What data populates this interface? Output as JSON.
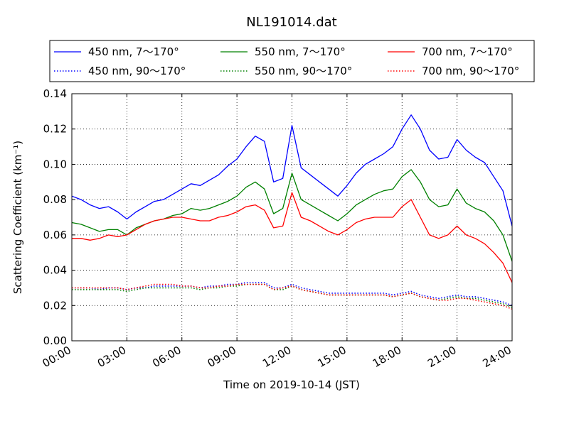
{
  "chart_data": {
    "type": "line",
    "title": "NL191014.dat",
    "xlabel": "Time on 2019-10-14 (JST)",
    "ylabel": "Scattering Coefficient (km⁻¹)",
    "x_unit": "hours",
    "xlim": [
      0,
      24
    ],
    "ylim": [
      0,
      0.14
    ],
    "xticks": [
      {
        "value": 0,
        "label": "00:00"
      },
      {
        "value": 3,
        "label": "03:00"
      },
      {
        "value": 6,
        "label": "06:00"
      },
      {
        "value": 9,
        "label": "09:00"
      },
      {
        "value": 12,
        "label": "12:00"
      },
      {
        "value": 15,
        "label": "15:00"
      },
      {
        "value": 18,
        "label": "18:00"
      },
      {
        "value": 21,
        "label": "21:00"
      },
      {
        "value": 24,
        "label": "24:00"
      }
    ],
    "yticks": [
      {
        "value": 0,
        "label": "0.00"
      },
      {
        "value": 0.02,
        "label": "0.02"
      },
      {
        "value": 0.04,
        "label": "0.04"
      },
      {
        "value": 0.06,
        "label": "0.06"
      },
      {
        "value": 0.08,
        "label": "0.08"
      },
      {
        "value": 0.1,
        "label": "0.10"
      },
      {
        "value": 0.12,
        "label": "0.12"
      },
      {
        "value": 0.14,
        "label": "0.14"
      }
    ],
    "grid": true,
    "legend_position": "top-outside",
    "x": [
      0,
      0.5,
      1,
      1.5,
      2,
      2.5,
      3,
      3.5,
      4,
      4.5,
      5,
      5.5,
      6,
      6.5,
      7,
      7.5,
      8,
      8.5,
      9,
      9.5,
      10,
      10.5,
      11,
      11.5,
      12,
      12.5,
      13,
      13.5,
      14,
      14.5,
      15,
      15.5,
      16,
      16.5,
      17,
      17.5,
      18,
      18.5,
      19,
      19.5,
      20,
      20.5,
      21,
      21.5,
      22,
      22.5,
      23,
      23.5,
      24
    ],
    "series": [
      {
        "name": "450 nm, 7～170°",
        "color": "#0000ff",
        "style": "solid",
        "values": [
          0.082,
          0.08,
          0.077,
          0.075,
          0.076,
          0.073,
          0.069,
          0.073,
          0.076,
          0.079,
          0.08,
          0.083,
          0.086,
          0.089,
          0.088,
          0.091,
          0.094,
          0.099,
          0.103,
          0.11,
          0.116,
          0.113,
          0.09,
          0.092,
          0.122,
          0.098,
          0.094,
          0.09,
          0.086,
          0.082,
          0.088,
          0.095,
          0.1,
          0.103,
          0.106,
          0.11,
          0.12,
          0.128,
          0.12,
          0.108,
          0.103,
          0.104,
          0.114,
          0.108,
          0.104,
          0.101,
          0.093,
          0.085,
          0.065
        ]
      },
      {
        "name": "550 nm, 7～170°",
        "color": "#008000",
        "style": "solid",
        "values": [
          0.067,
          0.066,
          0.064,
          0.062,
          0.063,
          0.063,
          0.06,
          0.064,
          0.066,
          0.068,
          0.069,
          0.071,
          0.072,
          0.075,
          0.074,
          0.075,
          0.077,
          0.079,
          0.082,
          0.087,
          0.09,
          0.086,
          0.072,
          0.075,
          0.095,
          0.08,
          0.077,
          0.074,
          0.071,
          0.068,
          0.072,
          0.077,
          0.08,
          0.083,
          0.085,
          0.086,
          0.093,
          0.097,
          0.09,
          0.08,
          0.076,
          0.077,
          0.086,
          0.078,
          0.075,
          0.073,
          0.068,
          0.06,
          0.045
        ]
      },
      {
        "name": "700 nm, 7～170°",
        "color": "#ff0000",
        "style": "solid",
        "values": [
          0.058,
          0.058,
          0.057,
          0.058,
          0.06,
          0.059,
          0.06,
          0.063,
          0.066,
          0.068,
          0.069,
          0.07,
          0.07,
          0.069,
          0.068,
          0.068,
          0.07,
          0.071,
          0.073,
          0.076,
          0.077,
          0.074,
          0.064,
          0.065,
          0.084,
          0.07,
          0.068,
          0.065,
          0.062,
          0.06,
          0.063,
          0.067,
          0.069,
          0.07,
          0.07,
          0.07,
          0.076,
          0.08,
          0.07,
          0.06,
          0.058,
          0.06,
          0.065,
          0.06,
          0.058,
          0.055,
          0.05,
          0.044,
          0.033
        ]
      },
      {
        "name": "450 nm, 90～170°",
        "color": "#0000ff",
        "style": "dotted",
        "values": [
          0.03,
          0.03,
          0.03,
          0.029,
          0.03,
          0.03,
          0.029,
          0.03,
          0.03,
          0.031,
          0.031,
          0.031,
          0.031,
          0.031,
          0.03,
          0.031,
          0.031,
          0.032,
          0.032,
          0.033,
          0.033,
          0.033,
          0.03,
          0.03,
          0.032,
          0.03,
          0.029,
          0.028,
          0.027,
          0.027,
          0.027,
          0.027,
          0.027,
          0.027,
          0.027,
          0.026,
          0.027,
          0.028,
          0.026,
          0.025,
          0.024,
          0.025,
          0.026,
          0.025,
          0.025,
          0.024,
          0.023,
          0.022,
          0.02
        ]
      },
      {
        "name": "550 nm, 90～170°",
        "color": "#008000",
        "style": "dotted",
        "values": [
          0.029,
          0.029,
          0.029,
          0.029,
          0.029,
          0.029,
          0.028,
          0.029,
          0.03,
          0.03,
          0.03,
          0.03,
          0.03,
          0.03,
          0.029,
          0.03,
          0.03,
          0.031,
          0.031,
          0.032,
          0.032,
          0.032,
          0.029,
          0.029,
          0.031,
          0.029,
          0.028,
          0.027,
          0.026,
          0.026,
          0.026,
          0.026,
          0.026,
          0.026,
          0.026,
          0.025,
          0.026,
          0.027,
          0.025,
          0.024,
          0.023,
          0.024,
          0.025,
          0.024,
          0.024,
          0.023,
          0.022,
          0.021,
          0.019
        ]
      },
      {
        "name": "700 nm, 90～170°",
        "color": "#ff0000",
        "style": "dotted",
        "values": [
          0.03,
          0.03,
          0.03,
          0.03,
          0.03,
          0.03,
          0.029,
          0.03,
          0.031,
          0.032,
          0.032,
          0.032,
          0.031,
          0.031,
          0.03,
          0.03,
          0.031,
          0.031,
          0.032,
          0.032,
          0.032,
          0.032,
          0.029,
          0.03,
          0.031,
          0.029,
          0.028,
          0.027,
          0.026,
          0.026,
          0.026,
          0.026,
          0.026,
          0.026,
          0.026,
          0.025,
          0.026,
          0.027,
          0.025,
          0.024,
          0.023,
          0.023,
          0.024,
          0.024,
          0.023,
          0.022,
          0.021,
          0.02,
          0.018
        ]
      }
    ],
    "legend_order": [
      0,
      1,
      2,
      3,
      4,
      5
    ]
  }
}
